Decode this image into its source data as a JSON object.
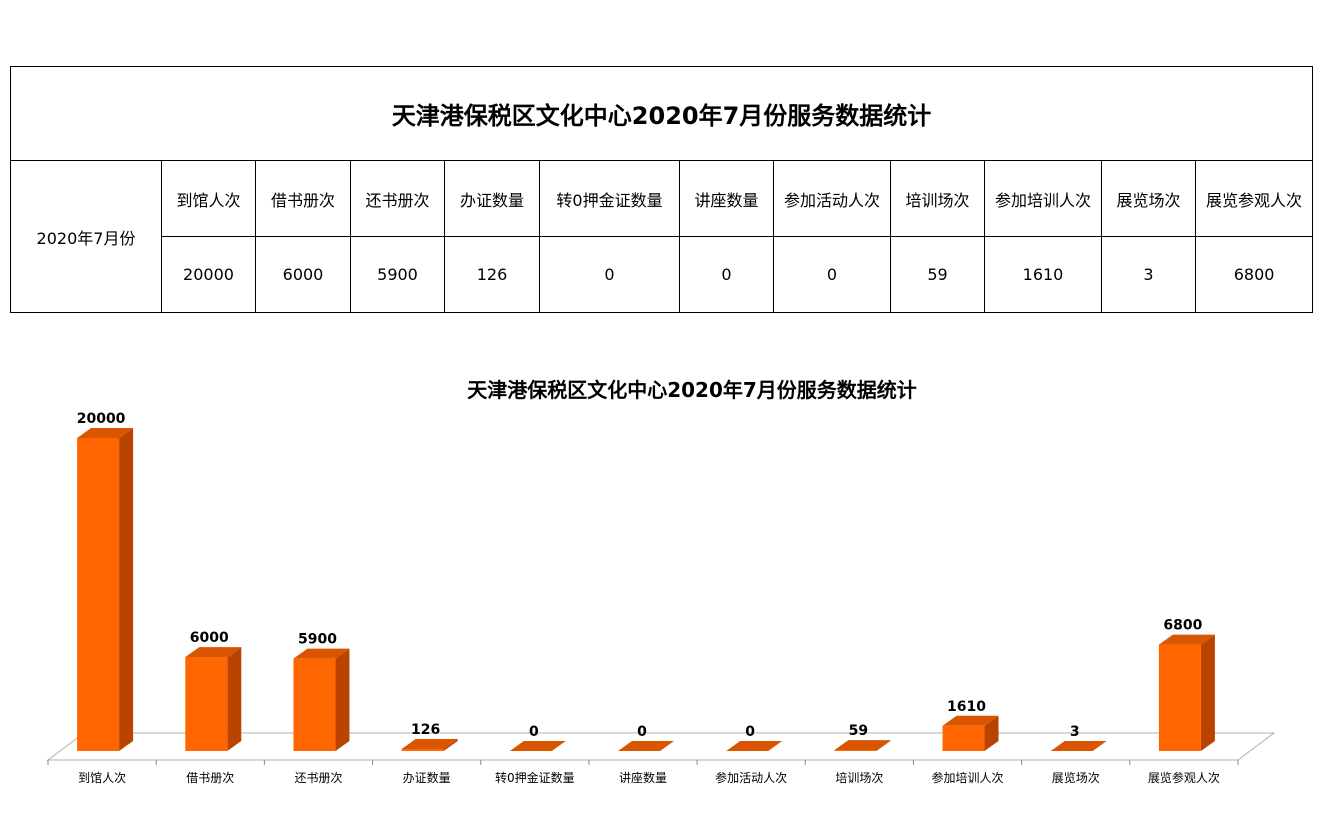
{
  "table": {
    "title": "天津港保税区文化中心2020年7月份服务数据统计",
    "row_label": "2020年7月份",
    "headers": [
      "到馆人次",
      "借书册次",
      "还书册次",
      "办证数量",
      "转0押金证数量",
      "讲座数量",
      "参加活动人次",
      "培训场次",
      "参加培训人次",
      "展览场次",
      "展览参观人次"
    ],
    "values": [
      "20000",
      "6000",
      "5900",
      "126",
      "0",
      "0",
      "0",
      "59",
      "1610",
      "3",
      "6800"
    ]
  },
  "chart_data": {
    "type": "bar",
    "title": "天津港保税区文化中心2020年7月份服务数据统计",
    "categories": [
      "到馆人次",
      "借书册次",
      "还书册次",
      "办证数量",
      "转0押金证数量",
      "讲座数量",
      "参加活动人次",
      "培训场次",
      "参加培训人次",
      "展览场次",
      "展览参观人次"
    ],
    "values": [
      20000,
      6000,
      5900,
      126,
      0,
      0,
      0,
      59,
      1610,
      3,
      6800
    ],
    "data_labels": true,
    "style": "3d-column",
    "xlabel": "",
    "ylabel": "",
    "ylim": [
      0,
      20000
    ],
    "grid": false,
    "colors": {
      "bar_front": "#FF6600",
      "bar_side": "#B84400",
      "bar_top": "#D95500"
    }
  }
}
